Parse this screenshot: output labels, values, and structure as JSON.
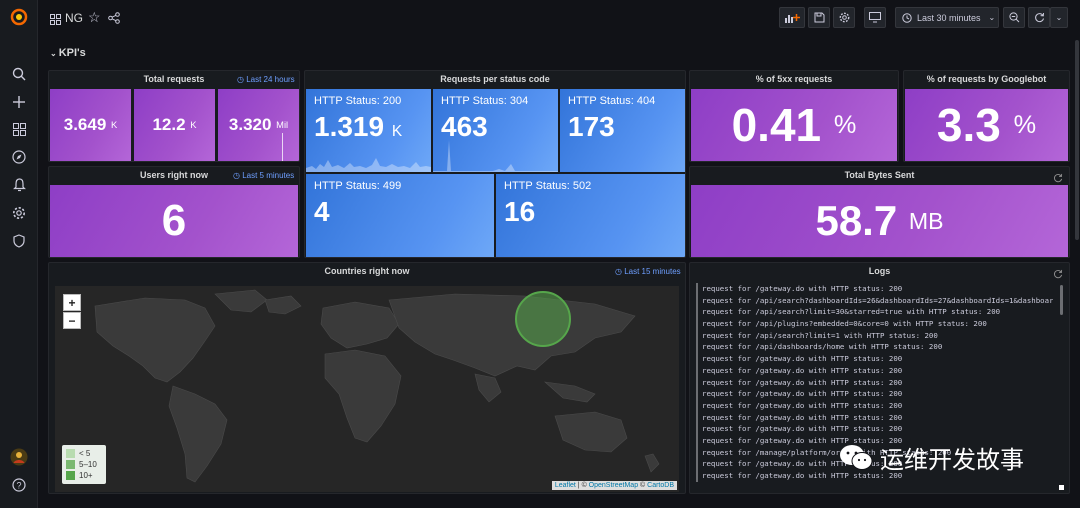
{
  "header": {
    "dashboard_title": "NG",
    "time_range": "Last 30 minutes"
  },
  "row": {
    "title": "KPI's"
  },
  "panels": {
    "total_requests": {
      "title": "Total requests",
      "time_override": "Last 24 hours",
      "stats": [
        {
          "value": "3.649",
          "unit": "K"
        },
        {
          "value": "12.2",
          "unit": "K"
        },
        {
          "value": "3.320",
          "unit": "Mil"
        }
      ]
    },
    "requests_per_status": {
      "title": "Requests per status code",
      "stats": [
        {
          "label": "HTTP Status: 200",
          "value": "1.319",
          "unit": "K"
        },
        {
          "label": "HTTP Status: 304",
          "value": "463",
          "unit": ""
        },
        {
          "label": "HTTP Status: 404",
          "value": "173",
          "unit": ""
        },
        {
          "label": "HTTP Status: 499",
          "value": "4",
          "unit": ""
        },
        {
          "label": "HTTP Status: 502",
          "value": "16",
          "unit": ""
        }
      ]
    },
    "pct_5xx": {
      "title": "% of 5xx requests",
      "value": "0.41",
      "unit": "%"
    },
    "pct_googlebot": {
      "title": "% of requests by Googlebot",
      "value": "3.3",
      "unit": "%"
    },
    "users_now": {
      "title": "Users right now",
      "time_override": "Last 5 minutes",
      "value": "6"
    },
    "total_bytes": {
      "title": "Total Bytes Sent",
      "value": "58.7",
      "unit": "MB"
    },
    "countries": {
      "title": "Countries right now",
      "time_override": "Last 15 minutes",
      "zoom_in": "+",
      "zoom_out": "−",
      "legend": [
        "< 5",
        "5–10",
        "10+"
      ],
      "attribution": {
        "leaflet": "Leaflet",
        "sep1": " | © ",
        "osm": "OpenStreetMap",
        "sep2": " © ",
        "carto": "CartoDB"
      }
    },
    "logs": {
      "title": "Logs",
      "lines": [
        "request for /gateway.do with HTTP status: 200",
        "request for /api/search?dashboardIds=26&dashboardIds=27&dashboardIds=1&dashboardIds=9&",
        "request for /api/search?limit=30&starred=true with HTTP status: 200",
        "request for /api/plugins?embedded=0&core=0 with HTTP status: 200",
        "request for /api/search?limit=1 with HTTP status: 200",
        "request for /api/dashboards/home with HTTP status: 200",
        "request for /gateway.do with HTTP status: 200",
        "request for /gateway.do with HTTP status: 200",
        "request for /gateway.do with HTTP status: 200",
        "request for /gateway.do with HTTP status: 200",
        "request for /gateway.do with HTTP status: 200",
        "request for /gateway.do with HTTP status: 200",
        "request for /gateway.do with HTTP status: 200",
        "request for /gateway.do with HTTP status: 200",
        "request for /manage/platform/order with HTTP status: 200",
        "request for /gateway.do with HTTP status: 200",
        "request for /gateway.do with HTTP status: 200"
      ]
    }
  },
  "watermark": {
    "text": "运维开发故事"
  },
  "colors": {
    "purple": "#a352cc",
    "blue": "#5794f2",
    "accent": "#6e9fff"
  }
}
